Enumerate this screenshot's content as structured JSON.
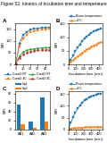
{
  "title": "Figure S1: kinetics of incubation time and temperature",
  "chart_data": [
    {
      "type": "line",
      "title": "A",
      "x": [
        0,
        5,
        10,
        15,
        20,
        25,
        30,
        35,
        40,
        45
      ],
      "series": [
        {
          "name": "Cond1 RT",
          "values": [
            0,
            90,
            125,
            140,
            148,
            152,
            155,
            157,
            158,
            159
          ],
          "marker": "square",
          "line_style": "solid"
        },
        {
          "name": "Cond1 4C",
          "values": [
            0,
            75,
            110,
            128,
            138,
            143,
            147,
            149,
            151,
            152
          ],
          "marker": "square",
          "line_style": "dashed"
        },
        {
          "name": "Cond2 RT",
          "values": [
            0,
            35,
            52,
            60,
            64,
            67,
            69,
            70,
            71,
            71
          ],
          "marker": "circle",
          "line_style": "solid"
        },
        {
          "name": "Cond2 4C",
          "values": [
            0,
            28,
            43,
            50,
            55,
            58,
            60,
            61,
            62,
            62
          ],
          "marker": "circle",
          "line_style": "dashed"
        }
      ],
      "xlim": [
        -1,
        47
      ],
      "xticks": [
        0,
        10,
        20,
        30,
        40
      ],
      "ylim": [
        0,
        175
      ],
      "yticks": [
        0,
        50,
        100,
        150
      ],
      "ylabel": "MFI",
      "legend": "lower right"
    },
    {
      "type": "line",
      "title": "B",
      "x": [
        0,
        30,
        60,
        90,
        120,
        150,
        180,
        210,
        240,
        270,
        300,
        330,
        360,
        390,
        420
      ],
      "series": [
        {
          "name": "Room temperature",
          "values": [
            5,
            18,
            32,
            48,
            62,
            74,
            85,
            95,
            103,
            110,
            116,
            121,
            125,
            128,
            131
          ],
          "marker": "square",
          "line_style": "solid"
        },
        {
          "name": "+4°C",
          "values": [
            5,
            10,
            16,
            23,
            30,
            37,
            43,
            49,
            55,
            60,
            65,
            70,
            74,
            78,
            82
          ],
          "marker": "circle",
          "line_style": "solid"
        }
      ],
      "xlim": [
        0,
        450
      ],
      "xticks": [
        0,
        100,
        200,
        300,
        400
      ],
      "ylim": [
        0,
        150
      ],
      "yticks": [
        0,
        50,
        100,
        150
      ],
      "xlabel": "Incubation time (min)",
      "ylabel": "MFI",
      "legend": "upper left"
    },
    {
      "type": "bar",
      "title": "C",
      "categories": [
        "AB1",
        "AB2",
        "AB3"
      ],
      "series": [
        {
          "name": "leg1",
          "values": [
            55,
            18,
            72
          ]
        },
        {
          "name": "leg2",
          "values": [
            12,
            4,
            18
          ]
        }
      ],
      "ylim": [
        0,
        85
      ],
      "yticks": [
        0,
        20,
        40,
        60,
        80
      ],
      "ylabel": "MFI",
      "legend": "upper left"
    },
    {
      "type": "line",
      "title": "D",
      "x": [
        0,
        30,
        60,
        90,
        120,
        150,
        180,
        210,
        240,
        270,
        300,
        330,
        360,
        390,
        420
      ],
      "series": [
        {
          "name": "Room temperature",
          "values": [
            2,
            28,
            52,
            72,
            88,
            102,
            113,
            122,
            129,
            135,
            140,
            144,
            147,
            150,
            152
          ],
          "marker": "square",
          "line_style": "solid"
        },
        {
          "name": "+4°C",
          "values": [
            2,
            4,
            5,
            6,
            7,
            8,
            8,
            9,
            9,
            10,
            10,
            10,
            11,
            11,
            11
          ],
          "marker": "circle",
          "line_style": "solid"
        }
      ],
      "xlim": [
        0,
        450
      ],
      "xticks": [
        0,
        100,
        200,
        300,
        400
      ],
      "ylim": [
        0,
        160
      ],
      "yticks": [
        0,
        50,
        100,
        150
      ],
      "xlabel": "Incubation time (min)",
      "ylabel": "MFI",
      "legend": "upper left"
    }
  ]
}
